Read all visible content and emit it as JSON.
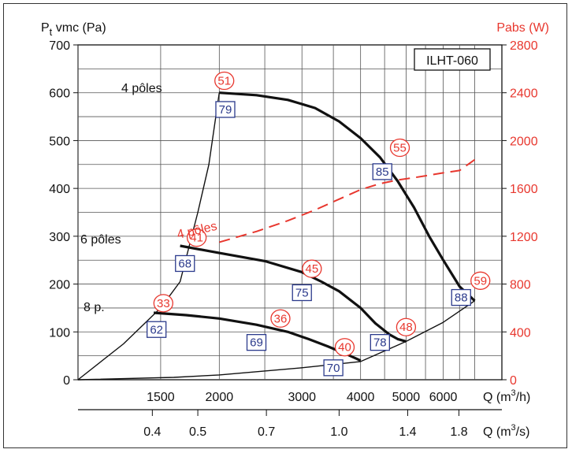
{
  "chart_data": {
    "type": "line",
    "title": "",
    "model_label": "ILHT-060",
    "ylabel_left": "Pt vmc (Pa)",
    "ylabel_left_main": "P",
    "ylabel_left_sub": "t",
    "ylabel_left_rest": " vmc (Pa)",
    "ylabel_right": "Pabs (W)",
    "ylim_left": [
      0,
      700
    ],
    "ylim_right": [
      0,
      2800
    ],
    "yticks_left": [
      "0",
      "100",
      "200",
      "300",
      "400",
      "500",
      "600",
      "700"
    ],
    "yticks_right": [
      "0",
      "400",
      "800",
      "1200",
      "1600",
      "2000",
      "2400",
      "2800"
    ],
    "x_axis_1": {
      "label": "Q (m³/h)",
      "label_main": "Q (m",
      "label_sup": "3",
      "label_end": "/h)",
      "scale": "log",
      "ticks": [
        "1500",
        "2000",
        "3000",
        "4000",
        "5000",
        "6000"
      ],
      "tick_values": [
        1500,
        2000,
        3000,
        4000,
        5000,
        6000
      ]
    },
    "x_axis_2": {
      "label": "Q (m³/s)",
      "label_main": "Q (m",
      "label_sup": "3",
      "label_end": "/s)",
      "ticks": [
        "0.4",
        "0.5",
        "0.7",
        "1.0",
        "1.4",
        "1.8"
      ],
      "tick_values": [
        0.4,
        0.5,
        0.7,
        1.0,
        1.4,
        1.8
      ]
    },
    "xlim": [
      1000,
      8000
    ],
    "gridlines_x": [
      1000,
      1500,
      2000,
      2500,
      3000,
      3500,
      4000,
      4500,
      5000,
      5500,
      6000,
      6500,
      7000
    ],
    "grid": true,
    "series": [
      {
        "name": "4 pôles",
        "axis": "left",
        "points": [
          [
            2000,
            600
          ],
          [
            2400,
            595
          ],
          [
            2800,
            585
          ],
          [
            3200,
            568
          ],
          [
            3600,
            540
          ],
          [
            4000,
            505
          ],
          [
            4400,
            465
          ],
          [
            4800,
            415
          ],
          [
            5200,
            360
          ],
          [
            5600,
            300
          ],
          [
            6000,
            250
          ],
          [
            6500,
            195
          ],
          [
            7000,
            165
          ]
        ]
      },
      {
        "name": "6 pôles",
        "axis": "left",
        "points": [
          [
            1650,
            280
          ],
          [
            2000,
            265
          ],
          [
            2500,
            248
          ],
          [
            3000,
            225
          ],
          [
            3300,
            205
          ],
          [
            3600,
            185
          ],
          [
            4000,
            150
          ],
          [
            4300,
            118
          ],
          [
            4600,
            95
          ],
          [
            4800,
            85
          ],
          [
            5000,
            80
          ]
        ]
      },
      {
        "name": "8 p.",
        "axis": "left",
        "points": [
          [
            1450,
            140
          ],
          [
            1700,
            135
          ],
          [
            2000,
            128
          ],
          [
            2400,
            115
          ],
          [
            2800,
            100
          ],
          [
            3100,
            85
          ],
          [
            3400,
            70
          ],
          [
            3700,
            55
          ],
          [
            3900,
            45
          ],
          [
            4000,
            40
          ]
        ]
      },
      {
        "name": "",
        "axis": "left",
        "role": "system-curve",
        "points": [
          [
            1000,
            0
          ],
          [
            1600,
            5
          ],
          [
            2000,
            10
          ],
          [
            3000,
            25
          ],
          [
            4000,
            38
          ],
          [
            5000,
            80
          ],
          [
            6000,
            120
          ],
          [
            7000,
            165
          ]
        ]
      },
      {
        "name": "",
        "axis": "left",
        "role": "limit-line",
        "points": [
          [
            1000,
            0
          ],
          [
            1250,
            75
          ],
          [
            1500,
            150
          ],
          [
            1650,
            205
          ],
          [
            1800,
            350
          ],
          [
            1900,
            450
          ],
          [
            2000,
            600
          ]
        ]
      },
      {
        "name": "4 pôles",
        "axis": "right",
        "dashed": true,
        "color": "#e8372e",
        "points": [
          [
            2000,
            1150
          ],
          [
            2400,
            1240
          ],
          [
            2800,
            1330
          ],
          [
            3200,
            1420
          ],
          [
            3600,
            1510
          ],
          [
            4000,
            1590
          ],
          [
            4400,
            1640
          ],
          [
            4800,
            1670
          ],
          [
            5200,
            1690
          ],
          [
            5600,
            1710
          ],
          [
            6000,
            1730
          ],
          [
            6500,
            1750
          ],
          [
            7000,
            1840
          ]
        ]
      }
    ],
    "curve_labels": [
      "4 pôles",
      "6 pôles",
      "8 p."
    ],
    "annotations": {
      "efficiency_circles": [
        {
          "text": "51",
          "x": 2050,
          "y": 625
        },
        {
          "text": "55",
          "x": 4850,
          "y": 485
        },
        {
          "text": "41",
          "x": 1790,
          "y": 297
        },
        {
          "text": "45",
          "x": 3150,
          "y": 232
        },
        {
          "text": "33",
          "x": 1520,
          "y": 160
        },
        {
          "text": "36",
          "x": 2700,
          "y": 128
        },
        {
          "text": "40",
          "x": 3700,
          "y": 68
        },
        {
          "text": "48",
          "x": 5000,
          "y": 110
        },
        {
          "text": "59",
          "x": 7200,
          "y": 207
        }
      ],
      "noise_boxes": [
        {
          "text": "79",
          "x": 2060,
          "y": 565
        },
        {
          "text": "85",
          "x": 4450,
          "y": 435
        },
        {
          "text": "68",
          "x": 1690,
          "y": 243
        },
        {
          "text": "75",
          "x": 3000,
          "y": 182
        },
        {
          "text": "88",
          "x": 6550,
          "y": 172
        },
        {
          "text": "62",
          "x": 1470,
          "y": 105
        },
        {
          "text": "69",
          "x": 2400,
          "y": 78
        },
        {
          "text": "78",
          "x": 4400,
          "y": 78
        },
        {
          "text": "70",
          "x": 3500,
          "y": 25
        }
      ]
    }
  }
}
